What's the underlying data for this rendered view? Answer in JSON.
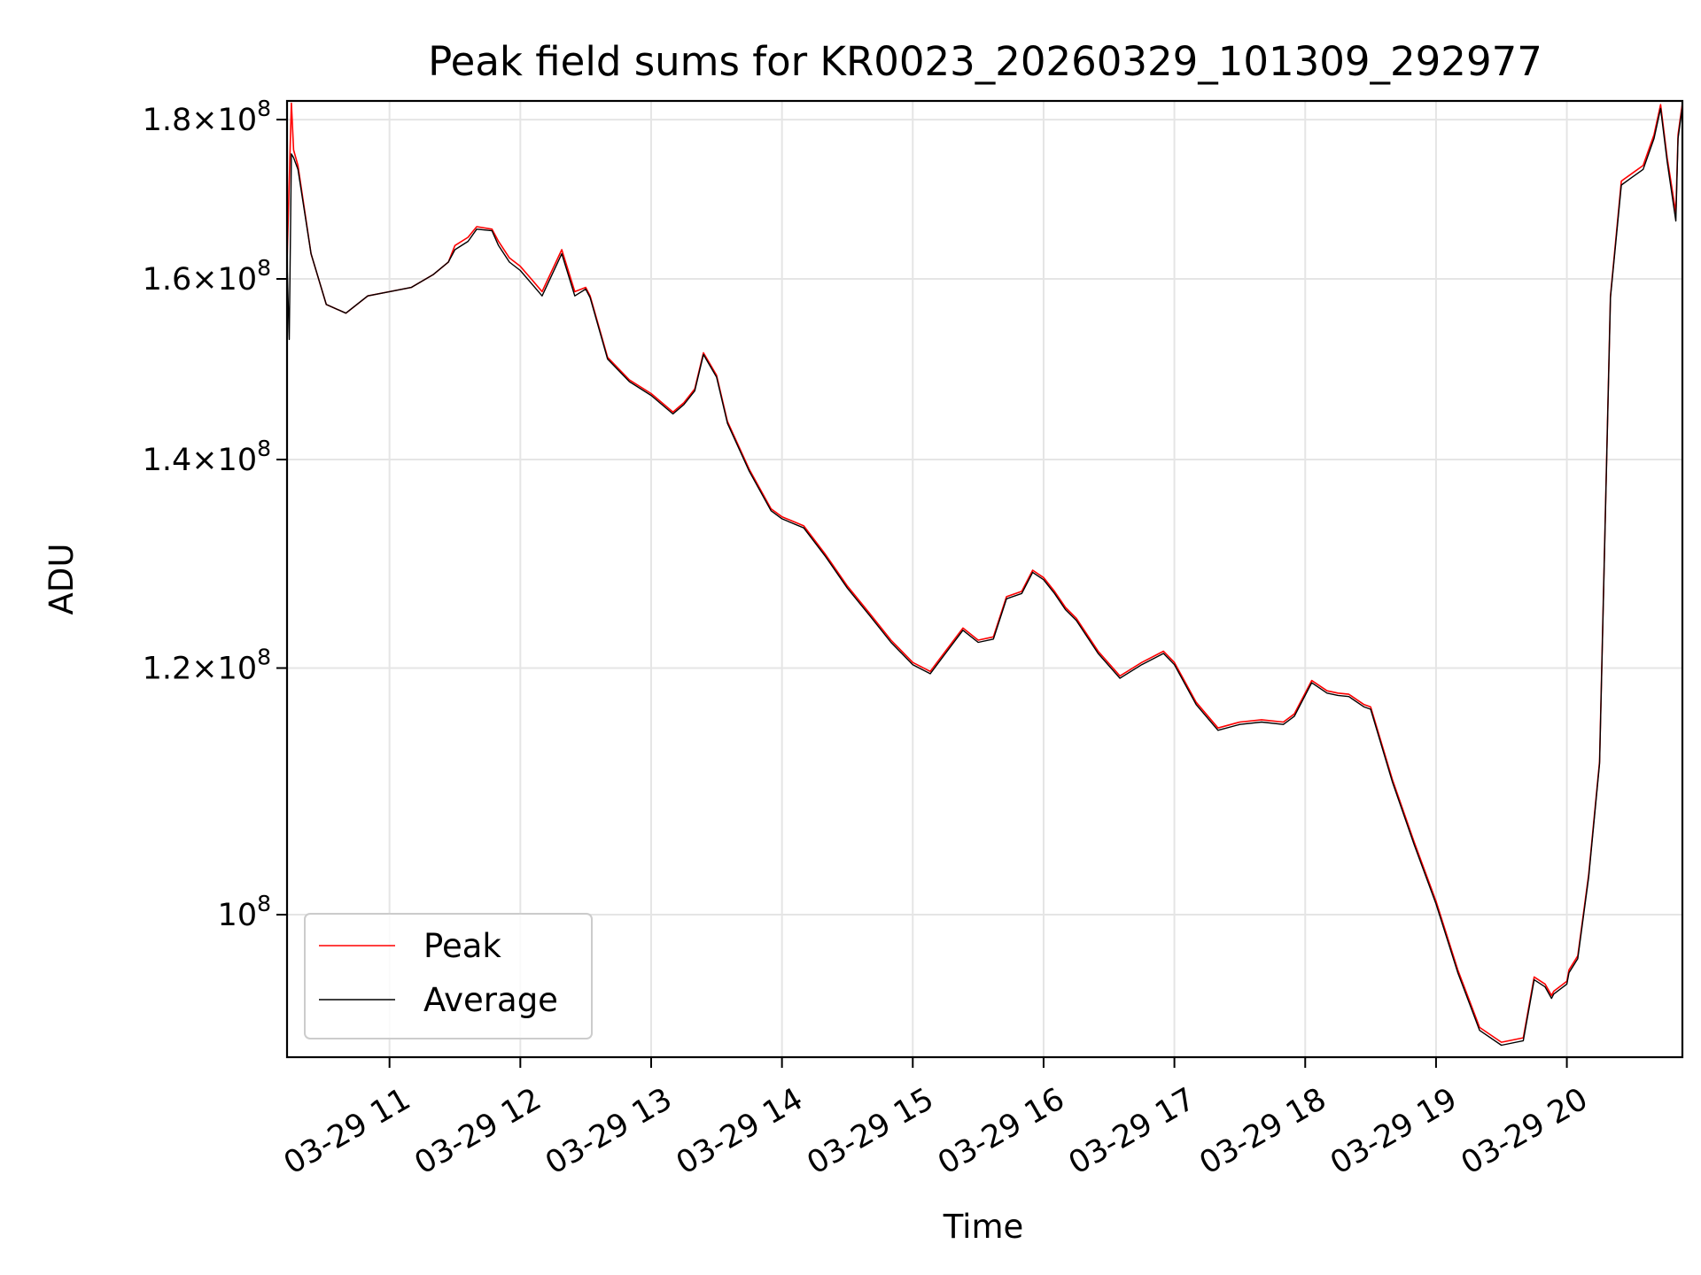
{
  "chart_data": {
    "type": "line",
    "title": "Peak field sums for KR0023_20260329_101309_292977",
    "xlabel": "Time",
    "ylabel": "ADU",
    "x_type": "datetime",
    "x_range": [
      "2026-03-29 10:13",
      "2026-03-29 20:53"
    ],
    "y_scale": "log",
    "ylim": [
      90000000,
      182500000
    ],
    "grid": true,
    "legend_position": "lower left",
    "x_tick_labels": [
      "03-29 11",
      "03-29 12",
      "03-29 13",
      "03-29 14",
      "03-29 15",
      "03-29 16",
      "03-29 17",
      "03-29 18",
      "03-29 19",
      "03-29 20"
    ],
    "x_ticks": [
      "2026-03-29 11:00",
      "2026-03-29 12:00",
      "2026-03-29 13:00",
      "2026-03-29 14:00",
      "2026-03-29 15:00",
      "2026-03-29 16:00",
      "2026-03-29 17:00",
      "2026-03-29 18:00",
      "2026-03-29 19:00",
      "2026-03-29 20:00"
    ],
    "y_ticks": [
      {
        "value": 100000000,
        "mantissa": "",
        "exponent": "8"
      },
      {
        "value": 120000000,
        "mantissa": "1.2",
        "exponent": "8"
      },
      {
        "value": 140000000,
        "mantissa": "1.4",
        "exponent": "8"
      },
      {
        "value": 160000000,
        "mantissa": "1.6",
        "exponent": "8"
      },
      {
        "value": 180000000,
        "mantissa": "1.8",
        "exponent": "8"
      }
    ],
    "series": [
      {
        "name": "Peak",
        "color": "#ff0000",
        "x": [
          "2026-03-29 10:13",
          "2026-03-29 10:15",
          "2026-03-29 10:16",
          "2026-03-29 10:18",
          "2026-03-29 10:24",
          "2026-03-29 10:31",
          "2026-03-29 10:40",
          "2026-03-29 10:50",
          "2026-03-29 11:00",
          "2026-03-29 11:10",
          "2026-03-29 11:20",
          "2026-03-29 11:27",
          "2026-03-29 11:30",
          "2026-03-29 11:36",
          "2026-03-29 11:40",
          "2026-03-29 11:47",
          "2026-03-29 11:50",
          "2026-03-29 11:55",
          "2026-03-29 12:00",
          "2026-03-29 12:05",
          "2026-03-29 12:10",
          "2026-03-29 12:19",
          "2026-03-29 12:25",
          "2026-03-29 12:30",
          "2026-03-29 12:32",
          "2026-03-29 12:40",
          "2026-03-29 12:50",
          "2026-03-29 13:00",
          "2026-03-29 13:10",
          "2026-03-29 13:15",
          "2026-03-29 13:20",
          "2026-03-29 13:24",
          "2026-03-29 13:30",
          "2026-03-29 13:35",
          "2026-03-29 13:45",
          "2026-03-29 13:55",
          "2026-03-29 14:00",
          "2026-03-29 14:10",
          "2026-03-29 14:20",
          "2026-03-29 14:30",
          "2026-03-29 14:40",
          "2026-03-29 14:50",
          "2026-03-29 15:00",
          "2026-03-29 15:08",
          "2026-03-29 15:15",
          "2026-03-29 15:23",
          "2026-03-29 15:30",
          "2026-03-29 15:37",
          "2026-03-29 15:43",
          "2026-03-29 15:50",
          "2026-03-29 15:55",
          "2026-03-29 16:00",
          "2026-03-29 16:05",
          "2026-03-29 16:10",
          "2026-03-29 16:15",
          "2026-03-29 16:25",
          "2026-03-29 16:35",
          "2026-03-29 16:45",
          "2026-03-29 16:55",
          "2026-03-29 17:00",
          "2026-03-29 17:10",
          "2026-03-29 17:20",
          "2026-03-29 17:30",
          "2026-03-29 17:40",
          "2026-03-29 17:50",
          "2026-03-29 17:55",
          "2026-03-29 18:03",
          "2026-03-29 18:10",
          "2026-03-29 18:15",
          "2026-03-29 18:20",
          "2026-03-29 18:27",
          "2026-03-29 18:30",
          "2026-03-29 18:40",
          "2026-03-29 18:50",
          "2026-03-29 19:00",
          "2026-03-29 19:10",
          "2026-03-29 19:20",
          "2026-03-29 19:30",
          "2026-03-29 19:40",
          "2026-03-29 19:45",
          "2026-03-29 19:50",
          "2026-03-29 19:53",
          "2026-03-29 19:54",
          "2026-03-29 20:00",
          "2026-03-29 20:01",
          "2026-03-29 20:05",
          "2026-03-29 20:10",
          "2026-03-29 20:15",
          "2026-03-29 20:20",
          "2026-03-29 20:25",
          "2026-03-29 20:30",
          "2026-03-29 20:35",
          "2026-03-29 20:40",
          "2026-03-29 20:43",
          "2026-03-29 20:46",
          "2026-03-29 20:50",
          "2026-03-29 20:51",
          "2026-03-29 20:53"
        ],
        "y": [
          162000000,
          182200000,
          176000000,
          174000000,
          163000000,
          157000000,
          156000000,
          158000000,
          158500000,
          159000000,
          160500000,
          162000000,
          164000000,
          165000000,
          166300000,
          166000000,
          164500000,
          162500000,
          161500000,
          160000000,
          158500000,
          163500000,
          158500000,
          159000000,
          158000000,
          151000000,
          148500000,
          147000000,
          145000000,
          146000000,
          147500000,
          151500000,
          149000000,
          144000000,
          139000000,
          135000000,
          134200000,
          133300000,
          130500000,
          127500000,
          125000000,
          122500000,
          120500000,
          119700000,
          121500000,
          123600000,
          122500000,
          122800000,
          126500000,
          127000000,
          129000000,
          128300000,
          127000000,
          125500000,
          124500000,
          121500000,
          119300000,
          120500000,
          121500000,
          120500000,
          117000000,
          114800000,
          115300000,
          115500000,
          115300000,
          116000000,
          118900000,
          118000000,
          117800000,
          117700000,
          116800000,
          116600000,
          110500000,
          105500000,
          101000000,
          96000000,
          92000000,
          91000000,
          91300000,
          95500000,
          95000000,
          94200000,
          94500000,
          95200000,
          96000000,
          97000000,
          103000000,
          112000000,
          158000000,
          172000000,
          173000000,
          174000000,
          178000000,
          182000000,
          175000000,
          168000000,
          178000000,
          182200000
        ]
      },
      {
        "name": "Average",
        "color": "#000000",
        "x": [
          "2026-03-29 10:13",
          "2026-03-29 10:14",
          "2026-03-29 10:15",
          "2026-03-29 10:16",
          "2026-03-29 10:18",
          "2026-03-29 10:24",
          "2026-03-29 10:31",
          "2026-03-29 10:40",
          "2026-03-29 10:50",
          "2026-03-29 11:00",
          "2026-03-29 11:10",
          "2026-03-29 11:20",
          "2026-03-29 11:27",
          "2026-03-29 11:30",
          "2026-03-29 11:36",
          "2026-03-29 11:40",
          "2026-03-29 11:47",
          "2026-03-29 11:50",
          "2026-03-29 11:55",
          "2026-03-29 12:00",
          "2026-03-29 12:05",
          "2026-03-29 12:10",
          "2026-03-29 12:19",
          "2026-03-29 12:25",
          "2026-03-29 12:30",
          "2026-03-29 12:32",
          "2026-03-29 12:40",
          "2026-03-29 12:50",
          "2026-03-29 13:00",
          "2026-03-29 13:10",
          "2026-03-29 13:15",
          "2026-03-29 13:20",
          "2026-03-29 13:24",
          "2026-03-29 13:30",
          "2026-03-29 13:35",
          "2026-03-29 13:45",
          "2026-03-29 13:55",
          "2026-03-29 14:00",
          "2026-03-29 14:10",
          "2026-03-29 14:20",
          "2026-03-29 14:30",
          "2026-03-29 14:40",
          "2026-03-29 14:50",
          "2026-03-29 15:00",
          "2026-03-29 15:08",
          "2026-03-29 15:15",
          "2026-03-29 15:23",
          "2026-03-29 15:30",
          "2026-03-29 15:37",
          "2026-03-29 15:43",
          "2026-03-29 15:50",
          "2026-03-29 15:55",
          "2026-03-29 16:00",
          "2026-03-29 16:05",
          "2026-03-29 16:10",
          "2026-03-29 16:15",
          "2026-03-29 16:25",
          "2026-03-29 16:35",
          "2026-03-29 16:45",
          "2026-03-29 16:55",
          "2026-03-29 17:00",
          "2026-03-29 17:10",
          "2026-03-29 17:20",
          "2026-03-29 17:30",
          "2026-03-29 17:40",
          "2026-03-29 17:50",
          "2026-03-29 17:55",
          "2026-03-29 18:03",
          "2026-03-29 18:10",
          "2026-03-29 18:15",
          "2026-03-29 18:20",
          "2026-03-29 18:27",
          "2026-03-29 18:30",
          "2026-03-29 18:40",
          "2026-03-29 18:50",
          "2026-03-29 19:00",
          "2026-03-29 19:10",
          "2026-03-29 19:20",
          "2026-03-29 19:30",
          "2026-03-29 19:40",
          "2026-03-29 19:45",
          "2026-03-29 19:50",
          "2026-03-29 19:53",
          "2026-03-29 19:54",
          "2026-03-29 20:00",
          "2026-03-29 20:01",
          "2026-03-29 20:05",
          "2026-03-29 20:10",
          "2026-03-29 20:15",
          "2026-03-29 20:20",
          "2026-03-29 20:25",
          "2026-03-29 20:30",
          "2026-03-29 20:35",
          "2026-03-29 20:40",
          "2026-03-29 20:43",
          "2026-03-29 20:46",
          "2026-03-29 20:50",
          "2026-03-29 20:51",
          "2026-03-29 20:53"
        ],
        "y": [
          162000000,
          153000000,
          175500000,
          175000000,
          173500000,
          163000000,
          157000000,
          156000000,
          158000000,
          158500000,
          159000000,
          160500000,
          162000000,
          163500000,
          164500000,
          166000000,
          165800000,
          164000000,
          162000000,
          161000000,
          159500000,
          158000000,
          163000000,
          158000000,
          158800000,
          157800000,
          150800000,
          148300000,
          146800000,
          144800000,
          145800000,
          147300000,
          151300000,
          148800000,
          143800000,
          138800000,
          134800000,
          134000000,
          133100000,
          130300000,
          127300000,
          124800000,
          122300000,
          120300000,
          119500000,
          121300000,
          123400000,
          122300000,
          122600000,
          126300000,
          126800000,
          128800000,
          128100000,
          126800000,
          125300000,
          124300000,
          121300000,
          119100000,
          120300000,
          121300000,
          120300000,
          116800000,
          114600000,
          115100000,
          115300000,
          115100000,
          115800000,
          118700000,
          117800000,
          117600000,
          117500000,
          116600000,
          116400000,
          110300000,
          105300000,
          100800000,
          95800000,
          91800000,
          90800000,
          91100000,
          95300000,
          94800000,
          94000000,
          94300000,
          95000000,
          95800000,
          96800000,
          102800000,
          111800000,
          157800000,
          171500000,
          172500000,
          173500000,
          177500000,
          181500000,
          174500000,
          167000000,
          177500000,
          181800000
        ]
      }
    ],
    "legend": [
      "Peak",
      "Average"
    ]
  }
}
